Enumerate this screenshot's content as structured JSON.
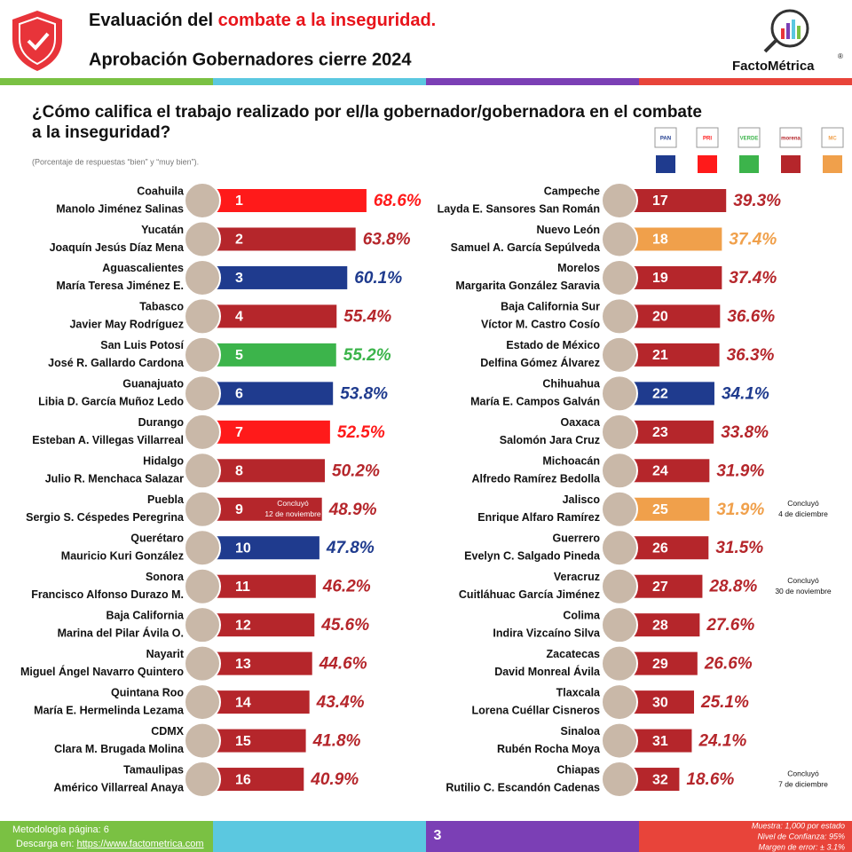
{
  "header": {
    "title_part1": "Evaluación del ",
    "title_part2": "combate a la inseguridad.",
    "subtitle": "Aprobación Gobernadores cierre 2024",
    "brand": "FactoMétrica",
    "brand_mark": "®"
  },
  "question": {
    "line1": "¿Cómo califica el trabajo realizado por el/la gobernador/gobernadora en el combate",
    "line2": "a la inseguridad?",
    "note": "(Porcentaje de respuestas “bien” y “muy bien”)."
  },
  "legend": [
    {
      "label": "PAN",
      "color": "#1f3b8e"
    },
    {
      "label": "PRI",
      "color": "#ff1a1a"
    },
    {
      "label": "VERDE",
      "color": "#3cb44b"
    },
    {
      "label": "morena",
      "color": "#b5262b"
    },
    {
      "label": "MC",
      "color": "#f0a04b"
    }
  ],
  "chart_data": {
    "type": "bar",
    "categories": [
      "Coahuila",
      "Yucatán",
      "Aguascalientes",
      "Tabasco",
      "San Luis Potosí",
      "Guanajuato",
      "Durango",
      "Hidalgo",
      "Puebla",
      "Querétaro",
      "Sonora",
      "Baja California",
      "Nayarit",
      "Quintana Roo",
      "CDMX",
      "Tamaulipas",
      "Campeche",
      "Nuevo León",
      "Morelos",
      "Baja California Sur",
      "Estado de México",
      "Chihuahua",
      "Oaxaca",
      "Michoacán",
      "Jalisco",
      "Guerrero",
      "Veracruz",
      "Colima",
      "Zacatecas",
      "Tlaxcala",
      "Sinaloa",
      "Chiapas"
    ],
    "governors": [
      "Manolo Jiménez Salinas",
      "Joaquín Jesús Díaz Mena",
      "María Teresa Jiménez E.",
      "Javier May Rodríguez",
      "José R. Gallardo Cardona",
      "Libia D. García Muñoz Ledo",
      "Esteban A. Villegas Villarreal",
      "Julio R. Menchaca Salazar",
      "Sergio S. Céspedes Peregrina",
      "Mauricio Kuri González",
      "Francisco Alfonso Durazo M.",
      "Marina del Pilar Ávila O.",
      "Miguel Ángel Navarro Quintero",
      "María E. Hermelinda Lezama",
      "Clara M. Brugada Molina",
      "Américo Villarreal Anaya",
      "Layda E. Sansores San Román",
      "Samuel A. García Sepúlveda",
      "Margarita González Saravia",
      "Víctor M. Castro Cosío",
      "Delfina Gómez Álvarez",
      "María E. Campos Galván",
      "Salomón Jara Cruz",
      "Alfredo Ramírez Bedolla",
      "Enrique Alfaro Ramírez",
      "Evelyn C. Salgado Pineda",
      "Cuitláhuac García Jiménez",
      "Indira Vizcaíno Silva",
      "David Monreal Ávila",
      "Lorena Cuéllar Cisneros",
      "Rubén Rocha Moya",
      "Rutilio C. Escandón Cadenas"
    ],
    "ranks": [
      1,
      2,
      3,
      4,
      5,
      6,
      7,
      8,
      9,
      10,
      11,
      12,
      13,
      14,
      15,
      16,
      17,
      18,
      19,
      20,
      21,
      22,
      23,
      24,
      25,
      26,
      27,
      28,
      29,
      30,
      31,
      32
    ],
    "values": [
      68.6,
      63.8,
      60.1,
      55.4,
      55.2,
      53.8,
      52.5,
      50.2,
      48.9,
      47.8,
      46.2,
      45.6,
      44.6,
      43.4,
      41.8,
      40.9,
      39.3,
      37.4,
      37.4,
      36.6,
      36.3,
      34.1,
      33.8,
      31.9,
      31.9,
      31.5,
      28.8,
      27.6,
      26.6,
      25.1,
      24.1,
      18.6
    ],
    "value_labels": [
      "68.6%",
      "63.8%",
      "60.1%",
      "55.4%",
      "55.2%",
      "53.8%",
      "52.5%",
      "50.2%",
      "48.9%",
      "47.8%",
      "46.2%",
      "45.6%",
      "44.6%",
      "43.4%",
      "41.8%",
      "40.9%",
      "39.3%",
      "37.4%",
      "37.4%",
      "36.6%",
      "36.3%",
      "34.1%",
      "33.8%",
      "31.9%",
      "31.9%",
      "31.5%",
      "28.8%",
      "27.6%",
      "26.6%",
      "25.1%",
      "24.1%",
      "18.6%"
    ],
    "colors": [
      "#ff1a1a",
      "#b5262b",
      "#1f3b8e",
      "#b5262b",
      "#3cb44b",
      "#1f3b8e",
      "#ff1a1a",
      "#b5262b",
      "#b5262b",
      "#1f3b8e",
      "#b5262b",
      "#b5262b",
      "#b5262b",
      "#b5262b",
      "#b5262b",
      "#b5262b",
      "#b5262b",
      "#f0a04b",
      "#b5262b",
      "#b5262b",
      "#b5262b",
      "#1f3b8e",
      "#b5262b",
      "#b5262b",
      "#f0a04b",
      "#b5262b",
      "#b5262b",
      "#b5262b",
      "#b5262b",
      "#b5262b",
      "#b5262b",
      "#b5262b"
    ],
    "notes": [
      null,
      null,
      null,
      null,
      null,
      null,
      null,
      null,
      [
        "Concluyó",
        "12 de noviembre"
      ],
      null,
      null,
      null,
      null,
      null,
      null,
      null,
      null,
      null,
      null,
      null,
      null,
      null,
      null,
      null,
      [
        "Concluyó",
        "4 de diciembre"
      ],
      null,
      [
        "Concluyó",
        "30 de noviembre"
      ],
      null,
      null,
      null,
      null,
      [
        "Concluyó",
        "7 de diciembre"
      ]
    ]
  },
  "footer": {
    "methodology": "Metodología página: 6",
    "download": "Descarga en: ",
    "url": "https://www.factometrica.com",
    "page": "3",
    "sample": "Muestra: 1,000 por estado",
    "confidence": "Nivel de Confianza: 95%",
    "error": "Margen de error: ± 3.1%"
  }
}
